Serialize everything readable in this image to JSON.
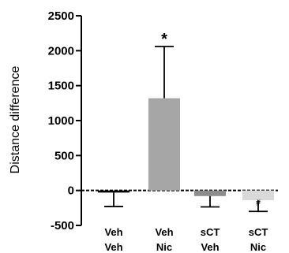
{
  "chart_data": {
    "type": "bar",
    "ylabel": "Distance difference",
    "ylim": [
      -500,
      2500
    ],
    "yticks": [
      -500,
      0,
      500,
      1000,
      1500,
      2000,
      2500
    ],
    "categories": [
      {
        "line1": "Veh",
        "line2": "Veh"
      },
      {
        "line1": "Veh",
        "line2": "Nic"
      },
      {
        "line1": "sCT",
        "line2": "Veh"
      },
      {
        "line1": "sCT",
        "line2": "Nic"
      }
    ],
    "values": [
      -30,
      1320,
      -80,
      -140
    ],
    "errors": [
      200,
      740,
      155,
      160
    ],
    "bar_colors": [
      "#000000",
      "#a6a6a6",
      "#8c8c8c",
      "#d9d9d9"
    ],
    "annotations": [
      "",
      "*",
      "",
      "#"
    ],
    "baseline_style": "dashed",
    "grid": false
  }
}
